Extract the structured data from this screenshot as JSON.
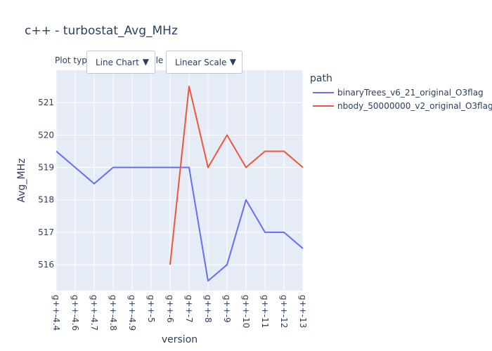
{
  "title": "c++ - turbostat_Avg_MHz",
  "controls": {
    "plot_type_label": "Plot type",
    "plot_type_value": "Line Chart",
    "scale_label": "Scale",
    "scale_value": "Linear Scale",
    "dropdown_arrow": "▼"
  },
  "legend": {
    "title": "path",
    "items": [
      {
        "name": "binaryTrees_v6_21_original_O3flag",
        "color": "#636efa"
      },
      {
        "name": "nbody_50000000_v2_original_O3flag",
        "color": "#ef553b"
      }
    ]
  },
  "chart_data": {
    "type": "line",
    "xlabel": "version",
    "ylabel": "Avg_MHz",
    "categories": [
      "g++-4.4",
      "g++-4.6",
      "g++-4.7",
      "g++-4.8",
      "g++-4.9",
      "g++-5",
      "g++-6",
      "g++-7",
      "g++-8",
      "g++-9",
      "g++-10",
      "g++-11",
      "g++-12",
      "g++-13"
    ],
    "ylim": [
      515.2,
      522
    ],
    "yticks": [
      516,
      517,
      518,
      519,
      520,
      521
    ],
    "grid": true,
    "legend_position": "right",
    "series": [
      {
        "name": "binaryTrees_v6_21_original_O3flag",
        "color": "#636efa",
        "values": [
          519.5,
          519,
          518.5,
          519,
          519,
          519,
          519,
          519,
          515.5,
          516,
          518,
          517,
          517,
          516.5
        ]
      },
      {
        "name": "nbody_50000000_v2_original_O3flag",
        "color": "#ef553b",
        "values": [
          null,
          null,
          null,
          null,
          null,
          null,
          516,
          521.5,
          519,
          520,
          519,
          519.5,
          519.5,
          519
        ]
      }
    ]
  }
}
